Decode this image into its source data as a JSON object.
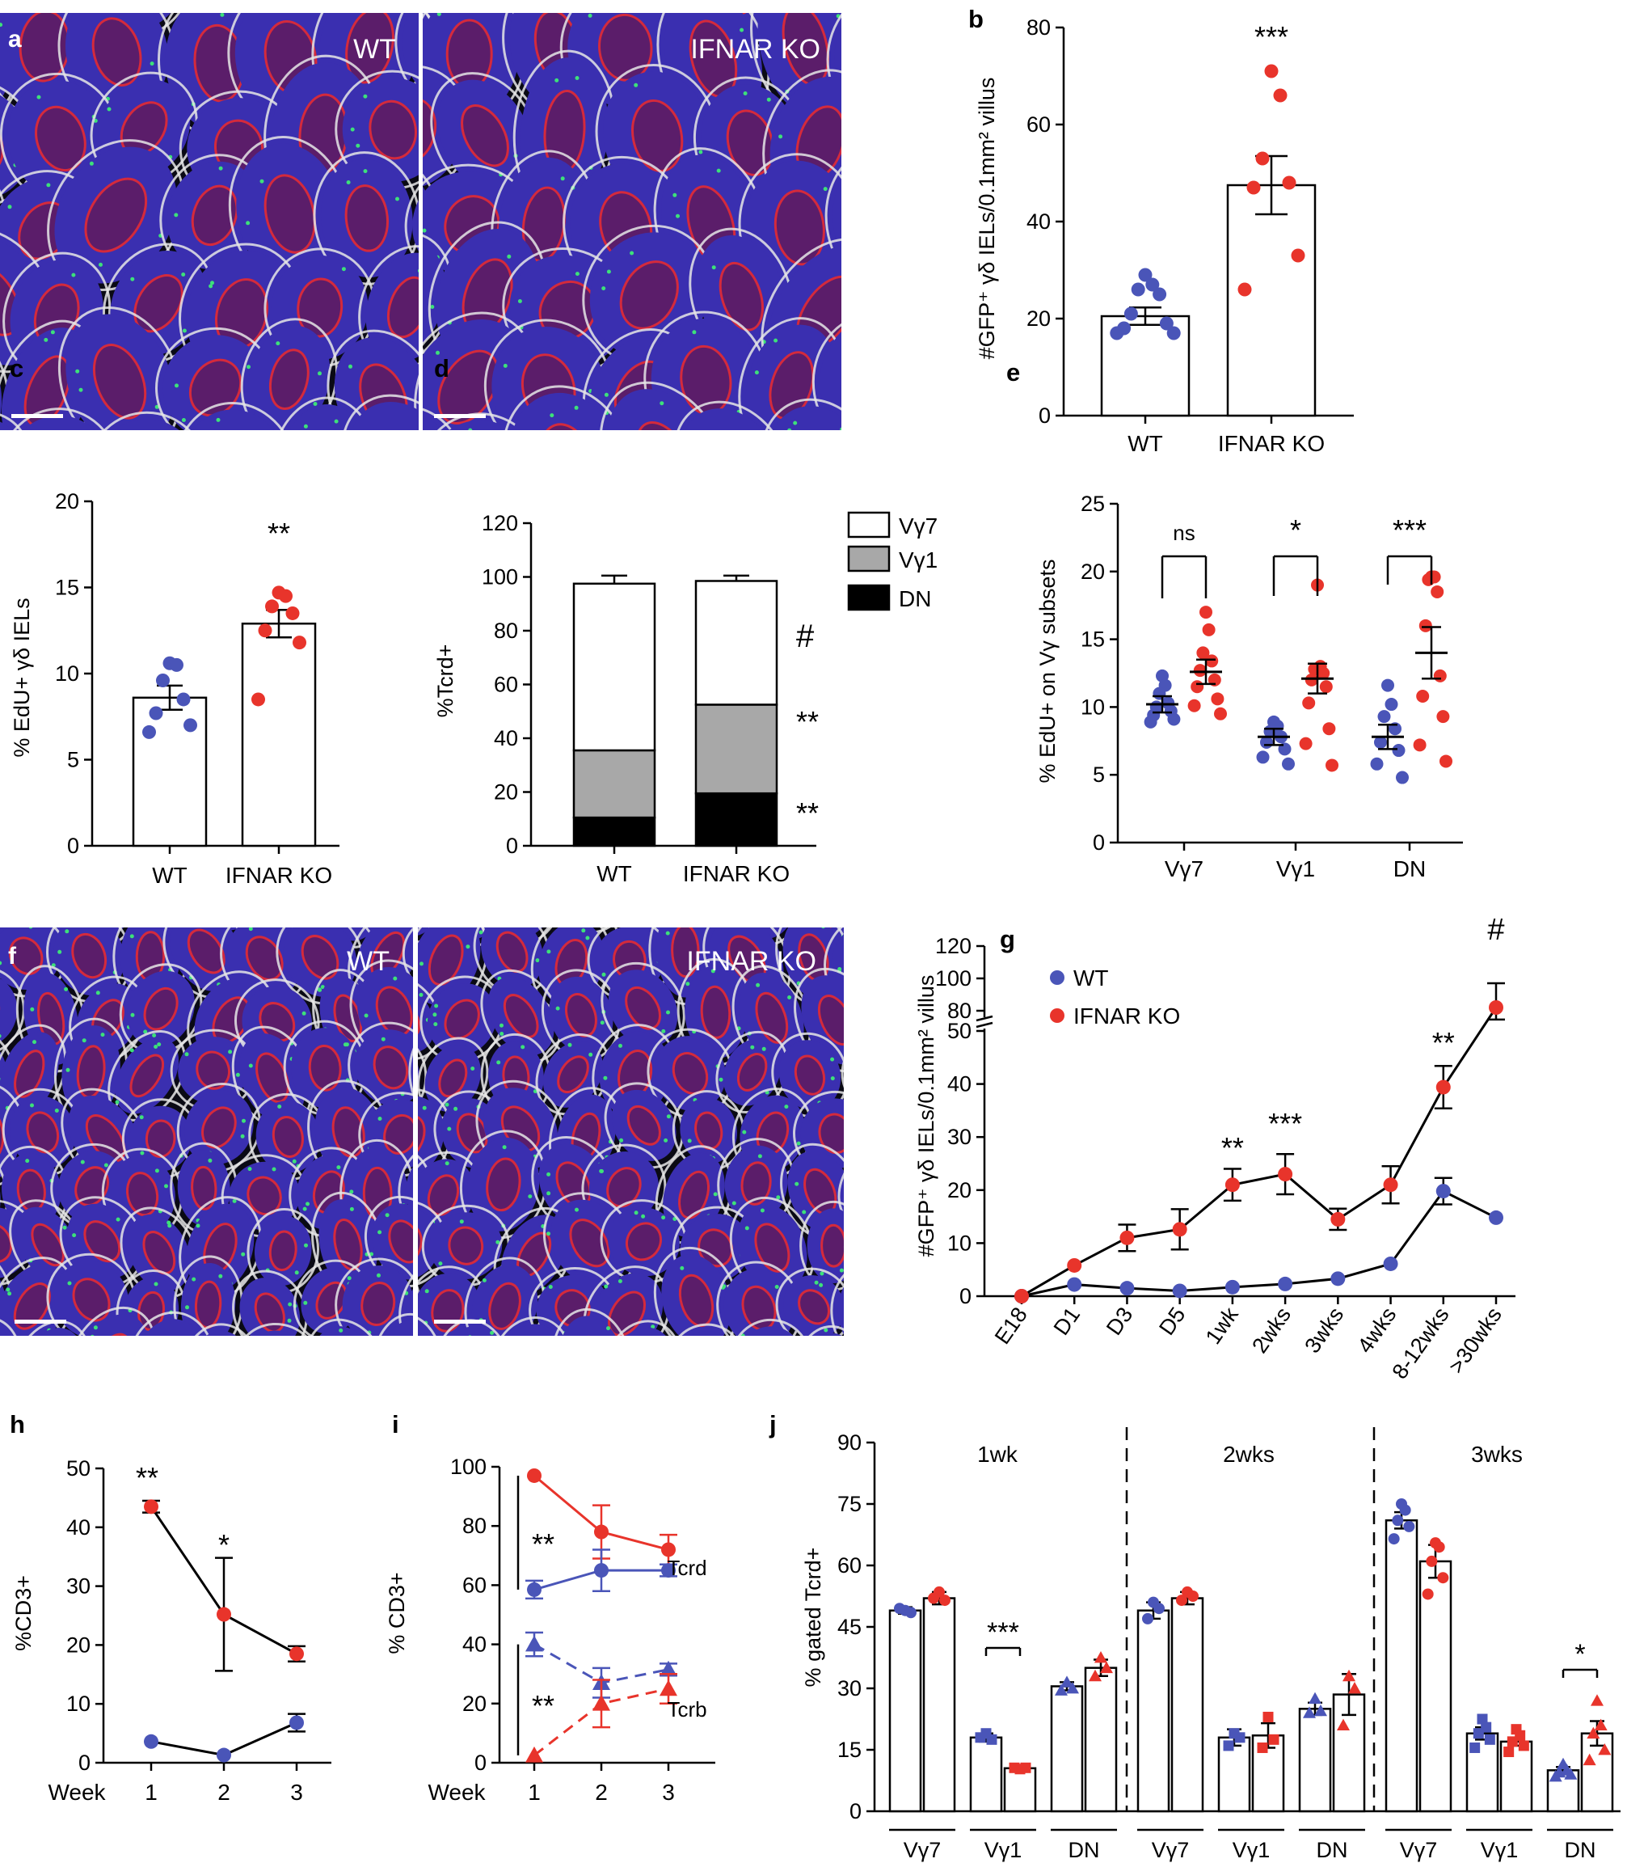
{
  "panels": {
    "a": {
      "letter": "a",
      "labels": [
        "WT",
        "IFNAR KO"
      ]
    },
    "f": {
      "letter": "f",
      "labels": [
        "WT",
        "IFNAR KO"
      ]
    }
  },
  "colors": {
    "wt": "#4a55b8",
    "ko": "#e8342b",
    "vg1": "#a8a8a8",
    "dn": "#000000",
    "tissue_blue": "#3a2fb0",
    "tissue_red": "#d42a3c",
    "tissue_white": "#e6e6e6"
  },
  "chart_data": [
    {
      "id": "b",
      "letter": "b",
      "type": "bar",
      "categories": [
        "WT",
        "IFNAR KO"
      ],
      "values": [
        20.5,
        47.5
      ],
      "errors": [
        1.8,
        6.0
      ],
      "points": [
        [
          29,
          27,
          26,
          25,
          21,
          19,
          18,
          17,
          17
        ],
        [
          71,
          66,
          53,
          48,
          47,
          33,
          26
        ]
      ],
      "ylabel": "#GFP⁺ γδ IELs/0.1mm² villus",
      "ylim": [
        0,
        80
      ],
      "yticks": [
        0,
        20,
        40,
        60,
        80
      ],
      "sig": "***"
    },
    {
      "id": "c",
      "letter": "c",
      "type": "bar",
      "categories": [
        "WT",
        "IFNAR KO"
      ],
      "values": [
        8.6,
        12.9
      ],
      "errors": [
        0.7,
        0.8
      ],
      "points": [
        [
          10.6,
          10.5,
          9.6,
          8.5,
          7.7,
          7.0,
          6.6
        ],
        [
          14.7,
          14.5,
          13.9,
          13.5,
          12.5,
          11.8,
          8.5
        ]
      ],
      "ylabel": "% EdU+ γδ IELs",
      "ylim": [
        0,
        20
      ],
      "yticks": [
        0,
        5,
        10,
        15,
        20
      ],
      "sig": "**"
    },
    {
      "id": "d",
      "letter": "d",
      "type": "bar",
      "stacked": true,
      "categories": [
        "WT",
        "IFNAR KO"
      ],
      "series": [
        {
          "name": "DN",
          "values": [
            10.5,
            19.5
          ],
          "errors": [
            1.5,
            2.0
          ]
        },
        {
          "name": "Vγ1",
          "values": [
            25.0,
            33.0
          ],
          "errors": [
            2.5,
            2.5
          ]
        },
        {
          "name": "Vγ7",
          "values": [
            62.0,
            46.0
          ],
          "errors": [
            3.0,
            2.0
          ]
        }
      ],
      "legend": [
        "Vγ7",
        "Vγ1",
        "DN"
      ],
      "ylabel": "%Tcrd+",
      "ylim": [
        0,
        120
      ],
      "yticks": [
        0,
        20,
        40,
        60,
        80,
        100,
        120
      ],
      "sig": [
        "#",
        "**",
        "**"
      ]
    },
    {
      "id": "e",
      "letter": "e",
      "type": "scatter",
      "categories": [
        "Vγ7",
        "Vγ1",
        "DN"
      ],
      "means": [
        [
          10.2,
          12.6
        ],
        [
          7.8,
          12.1
        ],
        [
          7.8,
          14.0
        ]
      ],
      "errors": [
        [
          0.6,
          0.9
        ],
        [
          0.6,
          1.1
        ],
        [
          0.9,
          1.9
        ]
      ],
      "points": [
        [
          [
            12.3,
            11.6,
            11.0,
            10.3,
            10.0,
            9.7,
            9.4,
            9.1,
            8.9
          ],
          [
            17.0,
            15.7,
            14.0,
            13.4,
            12.7,
            12.0,
            11.5,
            10.6,
            10.1,
            9.5
          ]
        ],
        [
          [
            8.9,
            8.6,
            8.2,
            7.8,
            7.4,
            6.9,
            6.3,
            5.8
          ],
          [
            19.0,
            13.0,
            12.8,
            12.5,
            12.0,
            11.5,
            10.3,
            8.4,
            7.3,
            5.7
          ]
        ],
        [
          [
            11.6,
            10.2,
            9.3,
            8.4,
            7.4,
            6.8,
            5.8,
            4.8
          ],
          [
            19.6,
            19.6,
            19.4,
            18.5,
            16.0,
            12.3,
            10.8,
            9.3,
            7.2,
            6.0
          ]
        ]
      ],
      "ylabel": "% EdU+ on Vγ subsets",
      "ylim": [
        0,
        25
      ],
      "yticks": [
        0,
        5,
        10,
        15,
        20,
        25
      ],
      "sig": [
        "ns",
        "*",
        "***"
      ]
    },
    {
      "id": "g",
      "letter": "g",
      "type": "line",
      "x": [
        "E18",
        "D1",
        "D3",
        "D5",
        "1wk",
        "2wks",
        "3wks",
        "4wks",
        "8-12wks",
        ">30wks"
      ],
      "series": [
        {
          "name": "WT",
          "values": [
            0,
            2.2,
            1.5,
            1.0,
            1.7,
            2.3,
            3.3,
            6.1,
            19.8,
            14.8
          ],
          "errors": [
            0,
            0,
            0,
            0,
            0,
            0,
            0,
            0,
            2.5,
            0
          ]
        },
        {
          "name": "IFNAR KO",
          "values": [
            0,
            5.8,
            11.0,
            12.6,
            21.0,
            23.0,
            14.5,
            21.0,
            39.4,
            82
          ],
          "errors": [
            0,
            0,
            2.5,
            3.8,
            3.0,
            3.8,
            2.0,
            3.5,
            4.0,
            15
          ]
        }
      ],
      "ylabel": "#GFP⁺ γδ IELs/0.1mm² villus",
      "yticks_lower": [
        0,
        10,
        20,
        30,
        40,
        50
      ],
      "yticks_upper": [
        80,
        100,
        120
      ],
      "sig": [
        {
          "x": "1wk",
          "label": "**"
        },
        {
          "x": "2wks",
          "label": "***"
        },
        {
          "x": "8-12wks",
          "label": "**"
        },
        {
          "x": ">30wks",
          "label": "#"
        }
      ]
    },
    {
      "id": "h",
      "letter": "h",
      "type": "line",
      "x": [
        1,
        2,
        3
      ],
      "xlabel": "Week",
      "series": [
        {
          "values": [
            43.5,
            25.2,
            18.5
          ],
          "errors": [
            1.0,
            9.6,
            1.3
          ]
        },
        {
          "values": [
            3.6,
            1.3,
            6.8
          ],
          "errors": [
            0.3,
            0.3,
            1.5
          ]
        }
      ],
      "ylabel": "%CD3+",
      "ylim": [
        0,
        50
      ],
      "yticks": [
        0,
        10,
        20,
        30,
        40,
        50
      ],
      "sig": [
        {
          "x": 1,
          "label": "**"
        },
        {
          "x": 2,
          "label": "*"
        }
      ]
    },
    {
      "id": "i",
      "letter": "i",
      "type": "line",
      "x": [
        1,
        2,
        3
      ],
      "xlabel": "Week",
      "series": [
        {
          "name": "Tcrd",
          "group": "ko",
          "values": [
            97,
            78,
            72
          ],
          "errors": [
            0,
            9,
            5
          ]
        },
        {
          "name": "Tcrd",
          "group": "wt",
          "values": [
            58.5,
            65,
            65
          ],
          "errors": [
            3,
            7,
            2
          ]
        },
        {
          "name": "Tcrb",
          "group": "wt",
          "values": [
            40,
            27,
            31.5
          ],
          "errors": [
            4,
            5,
            2
          ]
        },
        {
          "name": "Tcrb",
          "group": "ko",
          "values": [
            2.5,
            20,
            25
          ],
          "errors": [
            0,
            8,
            5
          ]
        }
      ],
      "line_labels": [
        "Tcrd",
        "Tcrb"
      ],
      "ylabel": "% CD3+",
      "ylim": [
        0,
        100
      ],
      "yticks": [
        0,
        20,
        40,
        60,
        80,
        100
      ],
      "sig": [
        "**",
        "**"
      ]
    },
    {
      "id": "j",
      "letter": "j",
      "type": "bar",
      "groups": [
        "1wk",
        "2wks",
        "3wks"
      ],
      "categories": [
        "Vγ7",
        "Vγ1",
        "DN"
      ],
      "values": [
        [
          [
            49,
            52
          ],
          [
            18,
            10.5
          ],
          [
            30.5,
            35
          ]
        ],
        [
          [
            49,
            52
          ],
          [
            18,
            18.5
          ],
          [
            25,
            28.5
          ]
        ],
        [
          [
            71,
            61
          ],
          [
            19,
            17
          ],
          [
            10,
            19
          ]
        ]
      ],
      "errors": [
        [
          [
            0.8,
            1.5
          ],
          [
            1.0,
            0.3
          ],
          [
            1.0,
            2.0
          ]
        ],
        [
          [
            2.0,
            1.5
          ],
          [
            2.0,
            3.0
          ],
          [
            1.5,
            5.0
          ]
        ],
        [
          [
            2.0,
            4.0
          ],
          [
            1.5,
            1.0
          ],
          [
            0.8,
            3.0
          ]
        ]
      ],
      "points": [
        [
          [
            [
              49,
              48.5,
              49.5
            ],
            [
              53.5,
              51.5,
              52
            ]
          ],
          [
            [
              19,
              17.5,
              18
            ],
            [
              10.3,
              10.6,
              10.6
            ]
          ],
          [
            [
              31.5,
              30,
              29.5
            ],
            [
              37.5,
              35,
              33
            ]
          ]
        ],
        [
          [
            [
              51,
              49.5,
              47
            ],
            [
              53.5,
              52.5,
              51.5
            ]
          ],
          [
            [
              19,
              18,
              16
            ],
            [
              23,
              17.5,
              15.5
            ]
          ],
          [
            [
              27.5,
              24.5,
              24
            ],
            [
              33,
              30,
              21
            ]
          ]
        ],
        [
          [
            [
              75,
              73.5,
              71,
              69.5,
              66.5
            ],
            [
              65.5,
              64.5,
              61,
              57,
              53
            ]
          ],
          [
            [
              22.5,
              20.5,
              19,
              17.5,
              15.5
            ],
            [
              20,
              18.5,
              17,
              16,
              14.5
            ]
          ],
          [
            [
              11.5,
              10,
              9.5,
              9,
              8.5
            ],
            [
              27,
              21,
              19,
              15,
              12.5
            ]
          ]
        ]
      ],
      "ylabel": "% gated Tcrd+",
      "ylim": [
        0,
        90
      ],
      "yticks": [
        0,
        15,
        30,
        45,
        60,
        75,
        90
      ],
      "sig": [
        {
          "group": "1wk",
          "category": "Vγ1",
          "label": "***"
        },
        {
          "group": "3wks",
          "category": "DN",
          "label": "*"
        }
      ]
    }
  ]
}
